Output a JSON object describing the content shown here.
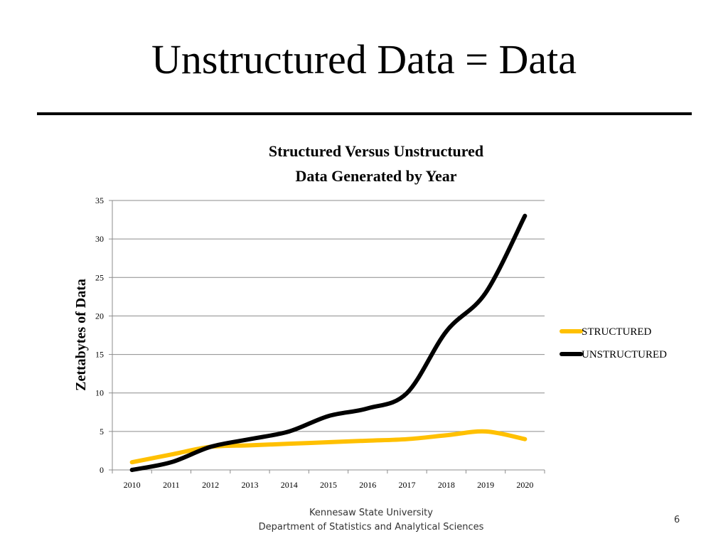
{
  "slide": {
    "title": "Unstructured Data = Data",
    "footer_line1": "Kennesaw State University",
    "footer_line2": "Department of Statistics and Analytical Sciences",
    "page_number": "6"
  },
  "chart_data": {
    "type": "line",
    "title_line1": "Structured Versus Unstructured",
    "title_line2": "Data Generated by Year",
    "ylabel": "Zettabytes of Data",
    "xlabel": "",
    "ylim": [
      0,
      35
    ],
    "yticks": [
      "0",
      "5",
      "10",
      "15",
      "20",
      "25",
      "30",
      "35"
    ],
    "categories": [
      "2010",
      "2011",
      "2012",
      "2013",
      "2014",
      "2015",
      "2016",
      "2017",
      "2018",
      "2019",
      "2020"
    ],
    "grid": true,
    "legend_position": "right",
    "series": [
      {
        "name": "STRUCTURED",
        "color": "#FFC000",
        "values": [
          1,
          2,
          3,
          3.2,
          3.4,
          3.6,
          3.8,
          4,
          4.5,
          5,
          4
        ]
      },
      {
        "name": "UNSTRUCTURED",
        "color": "#000000",
        "values": [
          0,
          1,
          3,
          4,
          5,
          7,
          8,
          10,
          18,
          23,
          33
        ]
      }
    ]
  }
}
